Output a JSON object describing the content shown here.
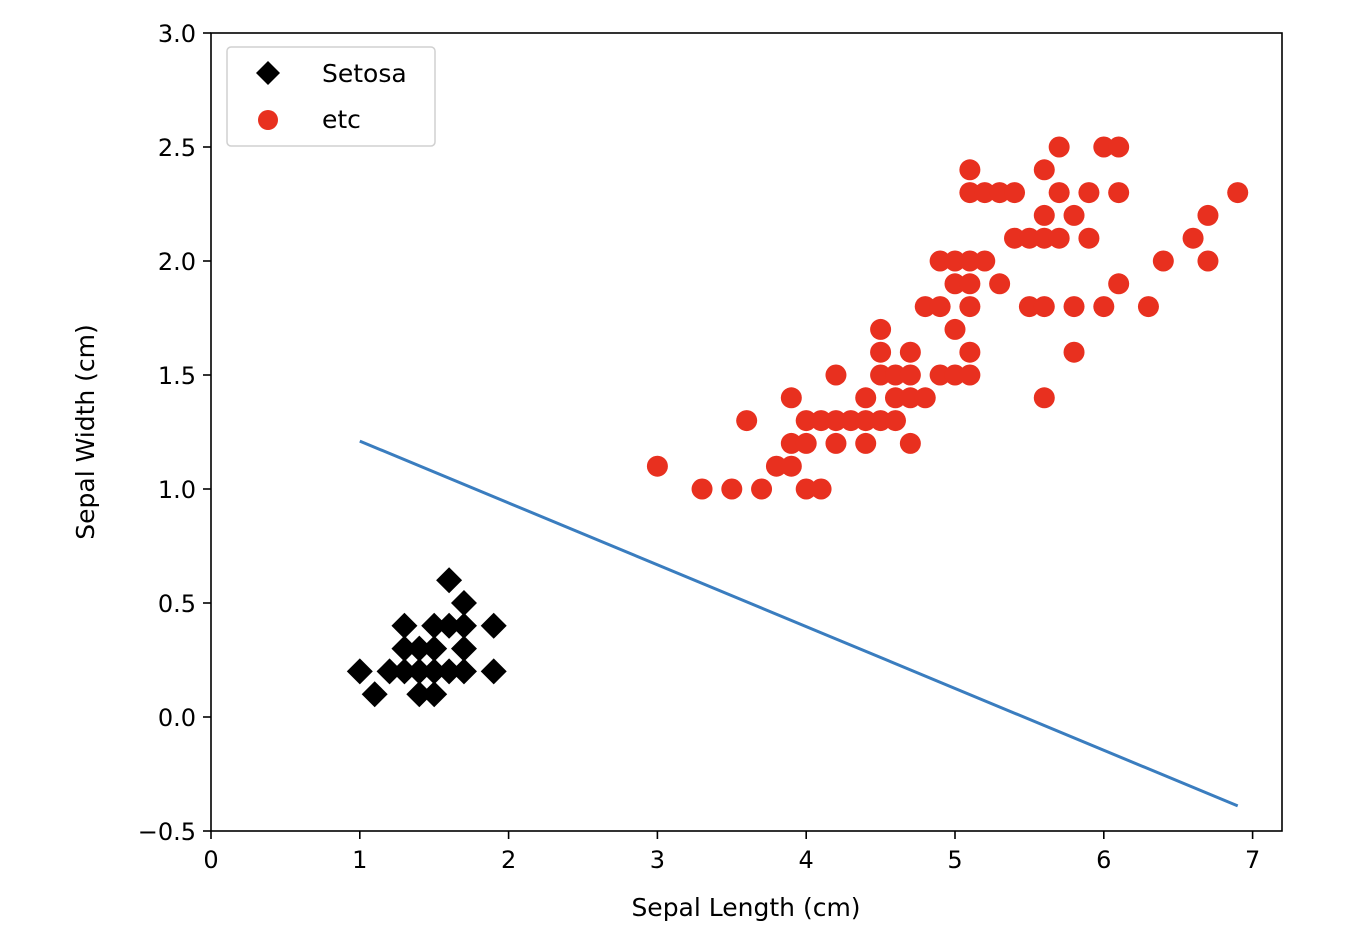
{
  "chart_data": {
    "type": "scatter",
    "title": "",
    "xlabel": "Sepal Length (cm)",
    "ylabel": "Sepal Width (cm)",
    "xlim": [
      0,
      7.2
    ],
    "ylim": [
      -0.5,
      3.0
    ],
    "xticks": [
      0,
      1,
      2,
      3,
      4,
      5,
      6,
      7
    ],
    "xtick_labels": [
      "0",
      "1",
      "2",
      "3",
      "4",
      "5",
      "6",
      "7"
    ],
    "yticks": [
      -0.5,
      0.0,
      0.5,
      1.0,
      1.5,
      2.0,
      2.5,
      3.0
    ],
    "ytick_labels": [
      "−0.5",
      "0.0",
      "0.5",
      "1.0",
      "1.5",
      "2.0",
      "2.5",
      "3.0"
    ],
    "grid": false,
    "legend_position": "top-left",
    "series": [
      {
        "name": "Setosa",
        "marker": "diamond",
        "color": "#000000",
        "points": [
          [
            1.0,
            0.2
          ],
          [
            1.1,
            0.1
          ],
          [
            1.2,
            0.2
          ],
          [
            1.3,
            0.2
          ],
          [
            1.3,
            0.3
          ],
          [
            1.3,
            0.4
          ],
          [
            1.4,
            0.1
          ],
          [
            1.4,
            0.2
          ],
          [
            1.4,
            0.3
          ],
          [
            1.5,
            0.1
          ],
          [
            1.5,
            0.2
          ],
          [
            1.5,
            0.3
          ],
          [
            1.5,
            0.4
          ],
          [
            1.6,
            0.2
          ],
          [
            1.6,
            0.4
          ],
          [
            1.6,
            0.6
          ],
          [
            1.7,
            0.2
          ],
          [
            1.7,
            0.3
          ],
          [
            1.7,
            0.4
          ],
          [
            1.7,
            0.5
          ],
          [
            1.9,
            0.2
          ],
          [
            1.9,
            0.4
          ]
        ]
      },
      {
        "name": "etc",
        "marker": "circle",
        "color": "#e8301f",
        "points": [
          [
            3.0,
            1.1
          ],
          [
            3.3,
            1.0
          ],
          [
            3.5,
            1.0
          ],
          [
            3.6,
            1.3
          ],
          [
            3.7,
            1.0
          ],
          [
            3.8,
            1.1
          ],
          [
            3.9,
            1.1
          ],
          [
            3.9,
            1.2
          ],
          [
            3.9,
            1.4
          ],
          [
            4.0,
            1.0
          ],
          [
            4.0,
            1.2
          ],
          [
            4.0,
            1.3
          ],
          [
            4.1,
            1.0
          ],
          [
            4.1,
            1.3
          ],
          [
            4.2,
            1.2
          ],
          [
            4.2,
            1.3
          ],
          [
            4.2,
            1.5
          ],
          [
            4.3,
            1.3
          ],
          [
            4.4,
            1.2
          ],
          [
            4.4,
            1.3
          ],
          [
            4.4,
            1.4
          ],
          [
            4.5,
            1.3
          ],
          [
            4.5,
            1.5
          ],
          [
            4.5,
            1.6
          ],
          [
            4.5,
            1.7
          ],
          [
            4.6,
            1.3
          ],
          [
            4.6,
            1.4
          ],
          [
            4.6,
            1.5
          ],
          [
            4.7,
            1.2
          ],
          [
            4.7,
            1.4
          ],
          [
            4.7,
            1.5
          ],
          [
            4.7,
            1.6
          ],
          [
            4.8,
            1.4
          ],
          [
            4.8,
            1.8
          ],
          [
            4.9,
            1.5
          ],
          [
            4.9,
            1.8
          ],
          [
            4.9,
            2.0
          ],
          [
            5.0,
            1.5
          ],
          [
            5.0,
            1.7
          ],
          [
            5.0,
            1.9
          ],
          [
            5.0,
            2.0
          ],
          [
            5.1,
            1.5
          ],
          [
            5.1,
            1.6
          ],
          [
            5.1,
            1.8
          ],
          [
            5.1,
            1.9
          ],
          [
            5.1,
            2.0
          ],
          [
            5.1,
            2.3
          ],
          [
            5.1,
            2.4
          ],
          [
            5.2,
            2.0
          ],
          [
            5.2,
            2.3
          ],
          [
            5.3,
            1.9
          ],
          [
            5.3,
            2.3
          ],
          [
            5.4,
            2.1
          ],
          [
            5.4,
            2.3
          ],
          [
            5.5,
            1.8
          ],
          [
            5.5,
            2.1
          ],
          [
            5.6,
            1.4
          ],
          [
            5.6,
            1.8
          ],
          [
            5.6,
            2.1
          ],
          [
            5.6,
            2.2
          ],
          [
            5.6,
            2.4
          ],
          [
            5.7,
            2.1
          ],
          [
            5.7,
            2.3
          ],
          [
            5.7,
            2.5
          ],
          [
            5.8,
            1.6
          ],
          [
            5.8,
            1.8
          ],
          [
            5.8,
            2.2
          ],
          [
            5.9,
            2.1
          ],
          [
            5.9,
            2.3
          ],
          [
            6.0,
            1.8
          ],
          [
            6.0,
            2.5
          ],
          [
            6.1,
            1.9
          ],
          [
            6.1,
            2.3
          ],
          [
            6.1,
            2.5
          ],
          [
            6.3,
            1.8
          ],
          [
            6.4,
            2.0
          ],
          [
            6.6,
            2.1
          ],
          [
            6.7,
            2.0
          ],
          [
            6.7,
            2.2
          ],
          [
            6.9,
            2.3
          ]
        ]
      }
    ],
    "lines": [
      {
        "color": "#3a7dbf",
        "x": [
          1.0,
          6.9
        ],
        "y": [
          1.21,
          -0.39
        ]
      }
    ]
  }
}
